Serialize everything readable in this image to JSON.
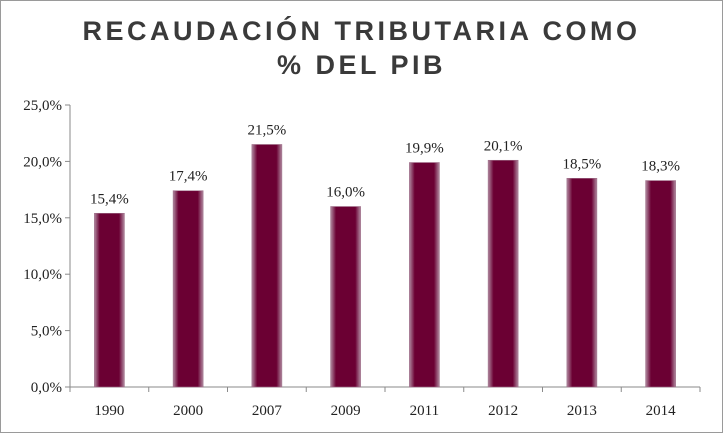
{
  "chart_data": {
    "type": "bar",
    "title_lines": [
      "RECAUDACIÓN TRIBUTARIA COMO",
      "% DEL PIB"
    ],
    "categories": [
      "1990",
      "2000",
      "2007",
      "2009",
      "2011",
      "2012",
      "2013",
      "2014"
    ],
    "values": [
      15.4,
      17.4,
      21.5,
      16.0,
      19.9,
      20.1,
      18.5,
      18.3
    ],
    "data_labels": [
      "15,4%",
      "17,4%",
      "21,5%",
      "16,0%",
      "19,9%",
      "20,1%",
      "18,5%",
      "18,3%"
    ],
    "y_ticks": [
      0,
      5,
      10,
      15,
      20,
      25
    ],
    "y_tick_labels": [
      "0,0%",
      "5,0%",
      "10,0%",
      "15,0%",
      "20,0%",
      "25,0%"
    ],
    "ylim": [
      0,
      25
    ],
    "xlabel": "",
    "ylabel": "",
    "grid": false,
    "legend": "none",
    "bar_color": "#6b0033",
    "bar_edge_color": "#a0708a"
  }
}
